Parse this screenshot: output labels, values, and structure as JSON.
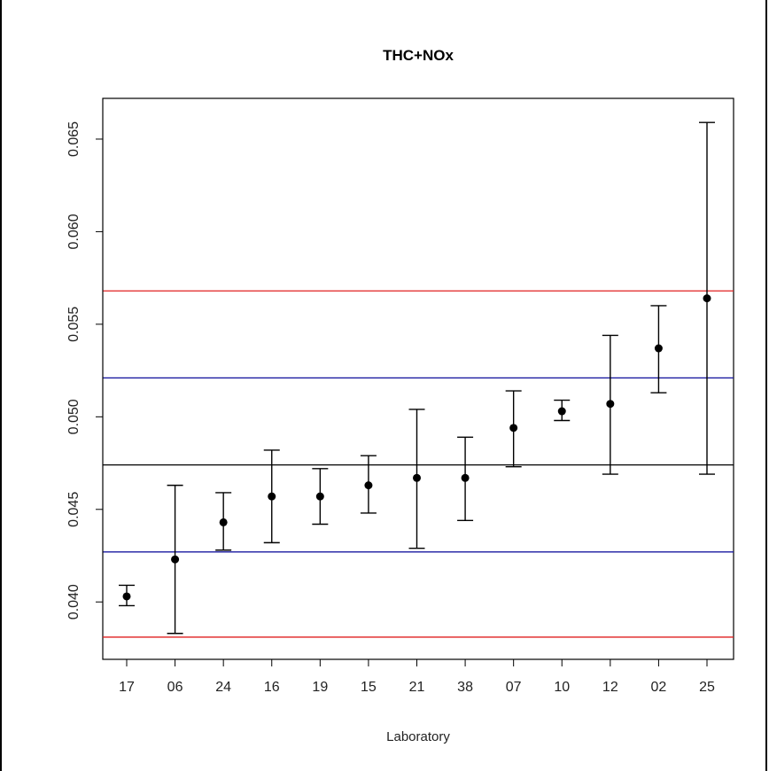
{
  "chart_data": {
    "type": "scatter",
    "title": "THC+NOx",
    "xlabel": "Laboratory",
    "ylabel": "",
    "categories": [
      "17",
      "06",
      "24",
      "16",
      "19",
      "15",
      "21",
      "38",
      "07",
      "10",
      "12",
      "02",
      "25"
    ],
    "points": [
      {
        "lab": "17",
        "value": 0.0403,
        "lower": 0.0398,
        "upper": 0.0409
      },
      {
        "lab": "06",
        "value": 0.0423,
        "lower": 0.0383,
        "upper": 0.0463
      },
      {
        "lab": "24",
        "value": 0.0443,
        "lower": 0.0428,
        "upper": 0.0459
      },
      {
        "lab": "16",
        "value": 0.0457,
        "lower": 0.0432,
        "upper": 0.0482
      },
      {
        "lab": "19",
        "value": 0.0457,
        "lower": 0.0442,
        "upper": 0.0472
      },
      {
        "lab": "15",
        "value": 0.0463,
        "lower": 0.0448,
        "upper": 0.0479
      },
      {
        "lab": "21",
        "value": 0.0467,
        "lower": 0.0429,
        "upper": 0.0504
      },
      {
        "lab": "38",
        "value": 0.0467,
        "lower": 0.0444,
        "upper": 0.0489
      },
      {
        "lab": "07",
        "value": 0.0494,
        "lower": 0.0473,
        "upper": 0.0514
      },
      {
        "lab": "10",
        "value": 0.0503,
        "lower": 0.0498,
        "upper": 0.0509
      },
      {
        "lab": "12",
        "value": 0.0507,
        "lower": 0.0469,
        "upper": 0.0544
      },
      {
        "lab": "02",
        "value": 0.0537,
        "lower": 0.0513,
        "upper": 0.056
      },
      {
        "lab": "25",
        "value": 0.0564,
        "lower": 0.0469,
        "upper": 0.0659
      }
    ],
    "reference_lines": [
      {
        "value": 0.0474,
        "color": "#000000"
      },
      {
        "value": 0.0521,
        "color": "#1a1aa0"
      },
      {
        "value": 0.0427,
        "color": "#1a1aa0"
      },
      {
        "value": 0.0568,
        "color": "#e02020"
      },
      {
        "value": 0.0381,
        "color": "#e02020"
      }
    ],
    "y_ticks": [
      {
        "value": 0.04,
        "label": "0.040"
      },
      {
        "value": 0.045,
        "label": "0.045"
      },
      {
        "value": 0.05,
        "label": "0.050"
      },
      {
        "value": 0.055,
        "label": "0.055"
      },
      {
        "value": 0.06,
        "label": "0.060"
      },
      {
        "value": 0.065,
        "label": "0.065"
      }
    ],
    "ylim": [
      0.0369,
      0.0672
    ],
    "grid": false,
    "legend": "none"
  }
}
